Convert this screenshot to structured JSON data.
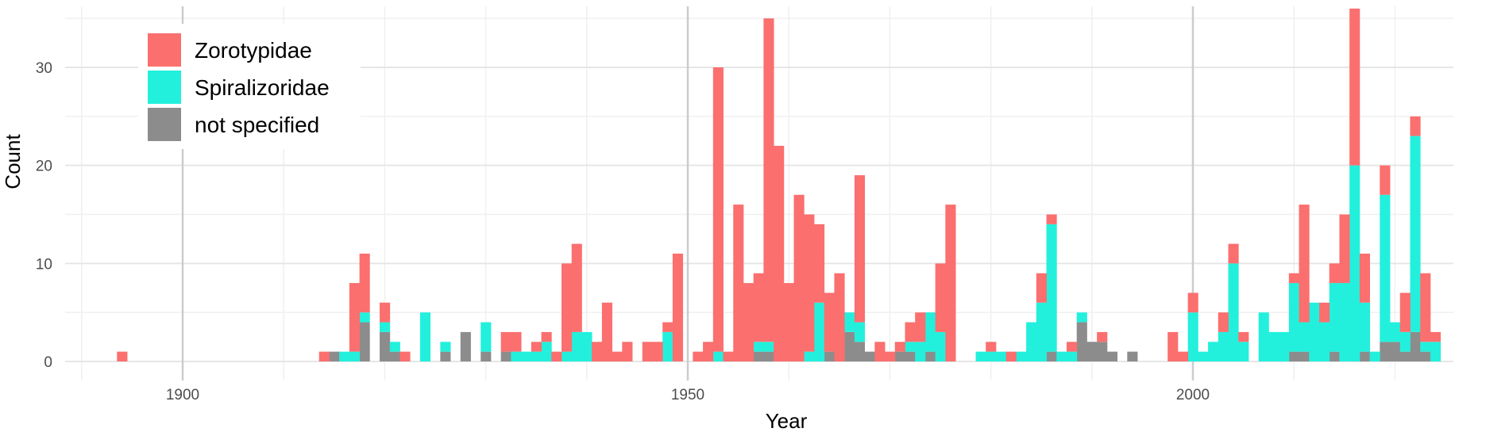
{
  "chart_data": {
    "type": "bar",
    "stacked": true,
    "xlabel": "Year",
    "ylabel": "Count",
    "xlim": [
      1890,
      2028
    ],
    "ylim": [
      0,
      35
    ],
    "x_ticks": [
      1900,
      1950,
      2000
    ],
    "y_ticks": [
      0,
      10,
      20,
      30
    ],
    "grid": true,
    "legend_position": "top-left",
    "series": [
      {
        "name": "not specified",
        "color": "#8c8c8c",
        "points": [
          [
            1915,
            1
          ],
          [
            1918,
            4
          ],
          [
            1920,
            3
          ],
          [
            1921,
            1
          ],
          [
            1926,
            1
          ],
          [
            1928,
            3
          ],
          [
            1930,
            1
          ],
          [
            1932,
            1
          ],
          [
            1957,
            1
          ],
          [
            1958,
            1
          ],
          [
            1964,
            1
          ],
          [
            1966,
            3
          ],
          [
            1967,
            2
          ],
          [
            1968,
            1
          ],
          [
            1971,
            1
          ],
          [
            1972,
            1
          ],
          [
            1974,
            1
          ],
          [
            1986,
            1
          ],
          [
            1989,
            4
          ],
          [
            1990,
            2
          ],
          [
            1991,
            2
          ],
          [
            1992,
            1
          ],
          [
            1994,
            1
          ],
          [
            2010,
            1
          ],
          [
            2011,
            1
          ],
          [
            2014,
            1
          ],
          [
            2017,
            1
          ],
          [
            2019,
            2
          ],
          [
            2020,
            2
          ],
          [
            2021,
            1
          ],
          [
            2022,
            3
          ],
          [
            2023,
            1
          ]
        ]
      },
      {
        "name": "Spiralizoridae",
        "color": "#22f0dc",
        "points": [
          [
            1916,
            1
          ],
          [
            1917,
            1
          ],
          [
            1918,
            1
          ],
          [
            1920,
            1
          ],
          [
            1921,
            1
          ],
          [
            1924,
            5
          ],
          [
            1926,
            1
          ],
          [
            1930,
            3
          ],
          [
            1933,
            1
          ],
          [
            1934,
            1
          ],
          [
            1935,
            1
          ],
          [
            1936,
            2
          ],
          [
            1938,
            1
          ],
          [
            1939,
            3
          ],
          [
            1940,
            3
          ],
          [
            1948,
            3
          ],
          [
            1953,
            1
          ],
          [
            1957,
            1
          ],
          [
            1958,
            1
          ],
          [
            1962,
            1
          ],
          [
            1963,
            6
          ],
          [
            1966,
            2
          ],
          [
            1967,
            2
          ],
          [
            1972,
            1
          ],
          [
            1973,
            2
          ],
          [
            1974,
            4
          ],
          [
            1975,
            3
          ],
          [
            1979,
            1
          ],
          [
            1980,
            1
          ],
          [
            1981,
            1
          ],
          [
            1983,
            1
          ],
          [
            1984,
            4
          ],
          [
            1985,
            6
          ],
          [
            1986,
            13
          ],
          [
            1987,
            1
          ],
          [
            1988,
            1
          ],
          [
            1989,
            1
          ],
          [
            2000,
            5
          ],
          [
            2001,
            1
          ],
          [
            2002,
            2
          ],
          [
            2003,
            3
          ],
          [
            2004,
            10
          ],
          [
            2005,
            2
          ],
          [
            2007,
            5
          ],
          [
            2008,
            3
          ],
          [
            2009,
            3
          ],
          [
            2010,
            7
          ],
          [
            2011,
            3
          ],
          [
            2012,
            6
          ],
          [
            2013,
            4
          ],
          [
            2014,
            7
          ],
          [
            2015,
            8
          ],
          [
            2016,
            20
          ],
          [
            2017,
            5
          ],
          [
            2018,
            1
          ],
          [
            2019,
            15
          ],
          [
            2020,
            2
          ],
          [
            2021,
            2
          ],
          [
            2022,
            20
          ],
          [
            2023,
            1
          ],
          [
            2024,
            2
          ]
        ]
      },
      {
        "name": "Zorotypidae",
        "color": "#fb6f6f",
        "points": [
          [
            1894,
            1
          ],
          [
            1914,
            1
          ],
          [
            1917,
            7
          ],
          [
            1918,
            6
          ],
          [
            1920,
            2
          ],
          [
            1922,
            1
          ],
          [
            1932,
            2
          ],
          [
            1933,
            2
          ],
          [
            1935,
            1
          ],
          [
            1936,
            1
          ],
          [
            1937,
            1
          ],
          [
            1938,
            9
          ],
          [
            1939,
            9
          ],
          [
            1941,
            2
          ],
          [
            1942,
            6
          ],
          [
            1943,
            1
          ],
          [
            1944,
            2
          ],
          [
            1946,
            2
          ],
          [
            1947,
            2
          ],
          [
            1948,
            1
          ],
          [
            1949,
            11
          ],
          [
            1951,
            1
          ],
          [
            1952,
            2
          ],
          [
            1953,
            29
          ],
          [
            1954,
            1
          ],
          [
            1955,
            16
          ],
          [
            1956,
            8
          ],
          [
            1957,
            7
          ],
          [
            1958,
            33
          ],
          [
            1959,
            22
          ],
          [
            1960,
            8
          ],
          [
            1961,
            17
          ],
          [
            1962,
            14
          ],
          [
            1963,
            8
          ],
          [
            1964,
            6
          ],
          [
            1965,
            9
          ],
          [
            1967,
            15
          ],
          [
            1969,
            2
          ],
          [
            1970,
            1
          ],
          [
            1971,
            1
          ],
          [
            1972,
            2
          ],
          [
            1973,
            3
          ],
          [
            1975,
            7
          ],
          [
            1976,
            16
          ],
          [
            1980,
            1
          ],
          [
            1982,
            1
          ],
          [
            1985,
            3
          ],
          [
            1986,
            1
          ],
          [
            1988,
            1
          ],
          [
            1991,
            1
          ],
          [
            1998,
            3
          ],
          [
            1999,
            1
          ],
          [
            2000,
            2
          ],
          [
            2003,
            2
          ],
          [
            2004,
            2
          ],
          [
            2005,
            1
          ],
          [
            2010,
            1
          ],
          [
            2011,
            12
          ],
          [
            2013,
            2
          ],
          [
            2014,
            2
          ],
          [
            2015,
            7
          ],
          [
            2016,
            16
          ],
          [
            2017,
            5
          ],
          [
            2019,
            3
          ],
          [
            2021,
            4
          ],
          [
            2022,
            2
          ],
          [
            2023,
            7
          ],
          [
            2024,
            1
          ]
        ]
      }
    ]
  }
}
